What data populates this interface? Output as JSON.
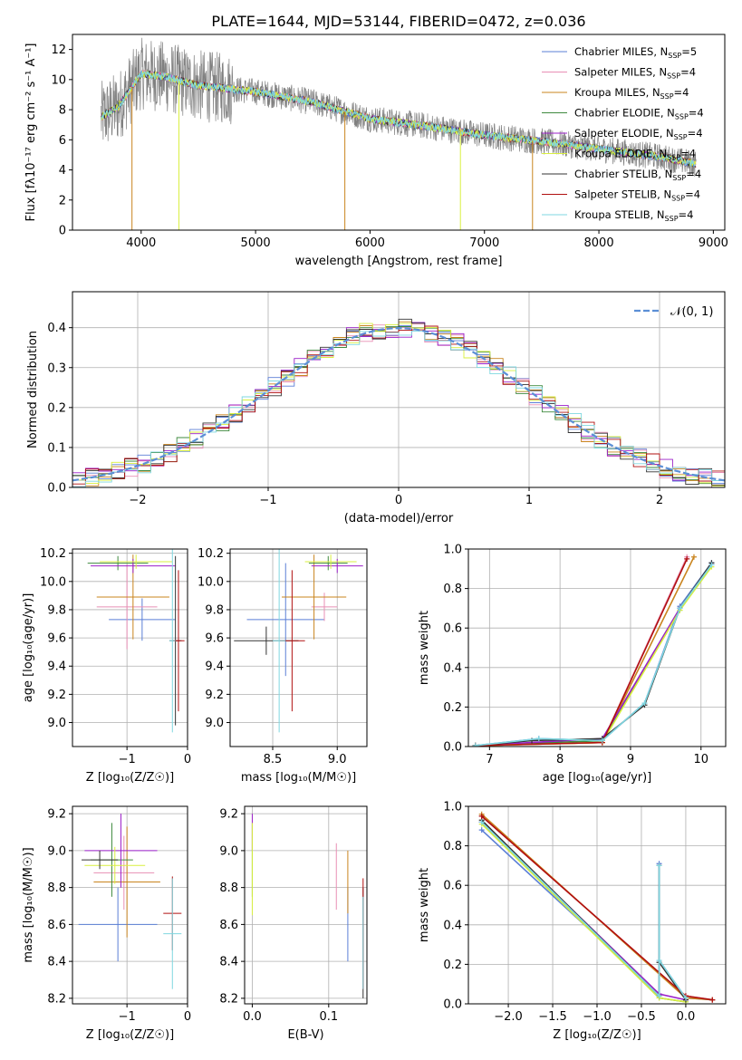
{
  "title": "PLATE=1644, MJD=53144, FIBERID=0472, z=0.036",
  "legend_series": [
    {
      "label": "Chabrier MILES, N",
      "sub": "SSP",
      "suffix": "=5",
      "color": "#5b7fd6"
    },
    {
      "label": "Salpeter MILES, N",
      "sub": "SSP",
      "suffix": "=4",
      "color": "#e88fb5"
    },
    {
      "label": "Kroupa MILES, N",
      "sub": "SSP",
      "suffix": "=4",
      "color": "#c9841e"
    },
    {
      "label": "Chabrier ELODIE, N",
      "sub": "SSP",
      "suffix": "=4",
      "color": "#3f8a3f"
    },
    {
      "label": "Salpeter ELODIE, N",
      "sub": "SSP",
      "suffix": "=4",
      "color": "#9b1fc9"
    },
    {
      "label": "Kroupa ELODIE, N",
      "sub": "SSP",
      "suffix": "=4",
      "color": "#d9ef3f"
    },
    {
      "label": "Chabrier STELIB, N",
      "sub": "SSP",
      "suffix": "=4",
      "color": "#333333"
    },
    {
      "label": "Salpeter STELIB, N",
      "sub": "SSP",
      "suffix": "=4",
      "color": "#b01010"
    },
    {
      "label": "Kroupa STELIB, N",
      "sub": "SSP",
      "suffix": "=4",
      "color": "#7fd7e0"
    }
  ],
  "spectrum_color": "#808080",
  "gauss_color": "#5b8fd6",
  "gauss_label": "𝒩(0, 1)",
  "chart_data": [
    {
      "type": "line",
      "name": "spectrum",
      "xlabel": "wavelength [Angstrom, rest frame]",
      "ylabel": "Flux [fλ10⁻¹⁷ erg cm⁻² s⁻¹ A⁻¹]",
      "xlim": [
        3400,
        9100
      ],
      "ylim": [
        0,
        13
      ],
      "xticks": [
        4000,
        5000,
        6000,
        7000,
        8000,
        9000
      ],
      "yticks": [
        0,
        2,
        4,
        6,
        8,
        10,
        12
      ],
      "model_continuum": {
        "x": [
          3650,
          3800,
          4000,
          4200,
          4500,
          5000,
          5500,
          6000,
          6500,
          7000,
          7500,
          8000,
          8500,
          8850
        ],
        "y": [
          7.5,
          8.2,
          10.4,
          10.2,
          9.6,
          9.2,
          8.5,
          7.4,
          6.9,
          6.3,
          5.9,
          5.4,
          4.9,
          4.4
        ]
      },
      "observed_noise_level": 1.5
    },
    {
      "type": "bar",
      "name": "residual histogram",
      "xlabel": "(data-model)/error",
      "ylabel": "Normed distribution",
      "xlim": [
        -2.5,
        2.5
      ],
      "ylim": [
        0,
        0.49
      ],
      "xticks": [
        -2,
        -1,
        0,
        1,
        2
      ],
      "yticks": [
        0.0,
        0.1,
        0.2,
        0.3,
        0.4
      ],
      "bin_width": 0.1,
      "gaussian": {
        "mean": 0,
        "sigma": 1
      }
    },
    {
      "type": "scatter",
      "name": "age vs metallicity",
      "xlabel": "Z [log₁₀(Z/Z☉)]",
      "ylabel": "age  [log₁₀(age/yr)]",
      "xlim": [
        -1.9,
        0.0
      ],
      "ylim": [
        8.83,
        10.23
      ],
      "xticks": [
        -1,
        0
      ],
      "yticks": [
        9.0,
        9.2,
        9.4,
        9.6,
        9.8,
        10.0,
        10.2
      ],
      "points": [
        {
          "series": 0,
          "x": -0.75,
          "y": 9.73,
          "xerr": 0.55,
          "yerr": 0.15
        },
        {
          "series": 1,
          "x": -1.0,
          "y": 9.82,
          "xerr": 0.5,
          "yerr": 0.3
        },
        {
          "series": 2,
          "x": -0.9,
          "y": 9.89,
          "xerr": 0.6,
          "yerr": 0.3
        },
        {
          "series": 3,
          "x": -1.15,
          "y": 10.13,
          "xerr": 0.5,
          "yerr": 0.05
        },
        {
          "series": 4,
          "x": -0.9,
          "y": 10.11,
          "xerr": 0.7,
          "yerr": 0.05
        },
        {
          "series": 5,
          "x": -0.85,
          "y": 10.14,
          "xerr": 0.6,
          "yerr": 0.05
        },
        {
          "series": 6,
          "x": -0.2,
          "y": 9.58,
          "xerr": 0.1,
          "yerr": 0.6
        },
        {
          "series": 7,
          "x": -0.15,
          "y": 9.58,
          "xerr": 0.1,
          "yerr": 0.5
        },
        {
          "series": 8,
          "x": -0.25,
          "y": 9.58,
          "xerr": 0.05,
          "yerr": 0.65
        }
      ]
    },
    {
      "type": "scatter",
      "name": "age vs mass",
      "xlabel": "mass [log₁₀(M/M☉)]",
      "ylabel": "",
      "xlim": [
        8.17,
        9.23
      ],
      "ylim": [
        8.83,
        10.23
      ],
      "xticks": [
        8.5,
        9.0
      ],
      "yticks": [
        9.0,
        9.2,
        9.4,
        9.6,
        9.8,
        10.0,
        10.2
      ],
      "points": [
        {
          "series": 0,
          "x": 8.6,
          "y": 9.73,
          "xerr": 0.3,
          "yerr": 0.4
        },
        {
          "series": 1,
          "x": 8.9,
          "y": 9.82,
          "xerr": 0.1,
          "yerr": 0.1
        },
        {
          "series": 2,
          "x": 8.82,
          "y": 9.89,
          "xerr": 0.25,
          "yerr": 0.3
        },
        {
          "series": 3,
          "x": 8.93,
          "y": 10.13,
          "xerr": 0.15,
          "yerr": 0.05
        },
        {
          "series": 4,
          "x": 9.0,
          "y": 10.11,
          "xerr": 0.2,
          "yerr": 0.05
        },
        {
          "series": 5,
          "x": 8.95,
          "y": 10.14,
          "xerr": 0.2,
          "yerr": 0.05
        },
        {
          "series": 6,
          "x": 8.45,
          "y": 9.58,
          "xerr": 0.25,
          "yerr": 0.1
        },
        {
          "series": 7,
          "x": 8.65,
          "y": 9.58,
          "xerr": 0.1,
          "yerr": 0.5
        },
        {
          "series": 8,
          "x": 8.55,
          "y": 9.58,
          "xerr": 0.05,
          "yerr": 0.65
        }
      ]
    },
    {
      "type": "line",
      "name": "mass weight vs age",
      "xlabel": "age  [log₁₀(age/yr)]",
      "ylabel": "mass weight",
      "xlim": [
        6.7,
        10.35
      ],
      "ylim": [
        0,
        1
      ],
      "xticks": [
        7,
        8,
        9,
        10
      ],
      "yticks": [
        0.0,
        0.2,
        0.4,
        0.6,
        0.8,
        1.0
      ],
      "series": [
        {
          "series": 0,
          "x": [
            6.8,
            7.7,
            8.6,
            9.2,
            9.7,
            10.15
          ],
          "y": [
            0.005,
            0.04,
            0.03,
            0.22,
            0.71,
            0.93
          ]
        },
        {
          "series": 1,
          "x": [
            6.8,
            8.6,
            9.8
          ],
          "y": [
            0.005,
            0.02,
            0.96
          ]
        },
        {
          "series": 2,
          "x": [
            6.8,
            8.6,
            9.9
          ],
          "y": [
            0.005,
            0.02,
            0.96
          ]
        },
        {
          "series": 3,
          "x": [
            6.8,
            8.6,
            9.7,
            10.15
          ],
          "y": [
            0.005,
            0.03,
            0.69,
            0.92
          ]
        },
        {
          "series": 4,
          "x": [
            6.8,
            8.6,
            9.7,
            10.15
          ],
          "y": [
            0.005,
            0.04,
            0.7,
            0.92
          ]
        },
        {
          "series": 5,
          "x": [
            6.8,
            8.6,
            9.7,
            10.15
          ],
          "y": [
            0.005,
            0.02,
            0.69,
            0.91
          ]
        },
        {
          "series": 6,
          "x": [
            6.8,
            7.6,
            8.6,
            9.2,
            9.7,
            10.15
          ],
          "y": [
            0.005,
            0.03,
            0.04,
            0.21,
            0.7,
            0.93
          ]
        },
        {
          "series": 7,
          "x": [
            6.8,
            8.6,
            9.8
          ],
          "y": [
            0.005,
            0.02,
            0.95
          ]
        },
        {
          "series": 8,
          "x": [
            6.8,
            7.7,
            8.6,
            9.2,
            9.7,
            10.15
          ],
          "y": [
            0.005,
            0.04,
            0.03,
            0.22,
            0.7,
            0.92
          ]
        }
      ]
    },
    {
      "type": "scatter",
      "name": "mass vs metallicity",
      "xlabel": "Z [log₁₀(Z/Z☉)]",
      "ylabel": "mass [log₁₀(M/M☉)]",
      "xlim": [
        -1.9,
        0.0
      ],
      "ylim": [
        8.17,
        9.24
      ],
      "xticks": [
        -1,
        0
      ],
      "yticks": [
        8.2,
        8.4,
        8.6,
        8.8,
        9.0,
        9.2
      ],
      "points": [
        {
          "series": 0,
          "x": -1.15,
          "y": 8.6,
          "xerr": 0.65,
          "yerr": 0.2
        },
        {
          "series": 1,
          "x": -1.05,
          "y": 8.88,
          "xerr": 0.5,
          "yerr": 0.2
        },
        {
          "series": 2,
          "x": -1.0,
          "y": 8.83,
          "xerr": 0.55,
          "yerr": 0.3
        },
        {
          "series": 3,
          "x": -1.25,
          "y": 8.95,
          "xerr": 0.35,
          "yerr": 0.2
        },
        {
          "series": 4,
          "x": -1.1,
          "y": 9.0,
          "xerr": 0.6,
          "yerr": 0.2
        },
        {
          "series": 5,
          "x": -1.2,
          "y": 8.92,
          "xerr": 0.5,
          "yerr": 0.1
        },
        {
          "series": 6,
          "x": -1.45,
          "y": 8.95,
          "xerr": 0.3,
          "yerr": 0.05
        },
        {
          "series": 7,
          "x": -0.25,
          "y": 8.66,
          "xerr": 0.15,
          "yerr": 0.2
        },
        {
          "series": 8,
          "x": -0.25,
          "y": 8.55,
          "xerr": 0.15,
          "yerr": 0.3
        }
      ]
    },
    {
      "type": "scatter",
      "name": "mass vs extinction",
      "xlabel": "E(B-V)",
      "ylabel": "",
      "xlim": [
        -0.01,
        0.15
      ],
      "ylim": [
        8.17,
        9.24
      ],
      "xticks": [
        0.0,
        0.1
      ],
      "yticks": [
        8.2,
        8.4,
        8.6,
        8.8,
        9.0,
        9.2
      ],
      "points": [
        {
          "series": 0,
          "x": 0.125,
          "y": 8.6,
          "xerr": 0.0,
          "yerr": 0.2
        },
        {
          "series": 1,
          "x": 0.11,
          "y": 8.86,
          "xerr": 0.0,
          "yerr": 0.18
        },
        {
          "series": 2,
          "x": 0.125,
          "y": 8.83,
          "xerr": 0.0,
          "yerr": 0.17
        },
        {
          "series": 3,
          "x": 0.0,
          "y": 8.95,
          "xerr": 0.0,
          "yerr": 0.2
        },
        {
          "series": 4,
          "x": 0.0,
          "y": 9.1,
          "xerr": 0.0,
          "yerr": 0.1
        },
        {
          "series": 5,
          "x": 0.0,
          "y": 8.9,
          "xerr": 0.0,
          "yerr": 0.25
        },
        {
          "series": 6,
          "x": 0.145,
          "y": 8.5,
          "xerr": 0.0,
          "yerr": 0.3
        },
        {
          "series": 7,
          "x": 0.145,
          "y": 8.55,
          "xerr": 0.0,
          "yerr": 0.3
        },
        {
          "series": 8,
          "x": 0.145,
          "y": 8.5,
          "xerr": 0.0,
          "yerr": 0.25
        }
      ]
    },
    {
      "type": "line",
      "name": "mass weight vs metallicity",
      "xlabel": "Z [log₁₀(Z/Z☉)]",
      "ylabel": "mass weight",
      "xlim": [
        -2.45,
        0.45
      ],
      "ylim": [
        0,
        1
      ],
      "xticks": [
        -2.0,
        -1.5,
        -1.0,
        -0.5,
        0.0
      ],
      "yticks": [
        0.0,
        0.2,
        0.4,
        0.6,
        0.8,
        1.0
      ],
      "series": [
        {
          "series": 0,
          "x": [
            -2.3,
            -0.3,
            -0.3,
            -0.3,
            0.0,
            0.3
          ],
          "y": [
            0.88,
            0.05,
            0.71,
            0.22,
            0.03,
            0.02
          ]
        },
        {
          "series": 1,
          "x": [
            -2.3,
            0.0,
            0.3
          ],
          "y": [
            0.95,
            0.04,
            0.02
          ]
        },
        {
          "series": 2,
          "x": [
            -2.3,
            0.0,
            0.3
          ],
          "y": [
            0.96,
            0.03,
            0.02
          ]
        },
        {
          "series": 3,
          "x": [
            -2.3,
            -0.3,
            0.0
          ],
          "y": [
            0.92,
            0.03,
            0.01
          ]
        },
        {
          "series": 4,
          "x": [
            -2.3,
            -0.3,
            0.0
          ],
          "y": [
            0.92,
            0.05,
            0.02
          ]
        },
        {
          "series": 5,
          "x": [
            -2.3,
            -0.3,
            0.0
          ],
          "y": [
            0.91,
            0.03,
            0.01
          ]
        },
        {
          "series": 6,
          "x": [
            -2.3,
            -0.3,
            -0.3,
            -0.3,
            0.0
          ],
          "y": [
            0.93,
            0.04,
            0.7,
            0.21,
            0.02
          ]
        },
        {
          "series": 7,
          "x": [
            -2.3,
            0.0,
            0.3
          ],
          "y": [
            0.95,
            0.04,
            0.02
          ]
        },
        {
          "series": 8,
          "x": [
            -2.3,
            -0.3,
            -0.3,
            -0.3,
            0.0
          ],
          "y": [
            0.92,
            0.04,
            0.7,
            0.22,
            0.03
          ]
        }
      ]
    }
  ]
}
